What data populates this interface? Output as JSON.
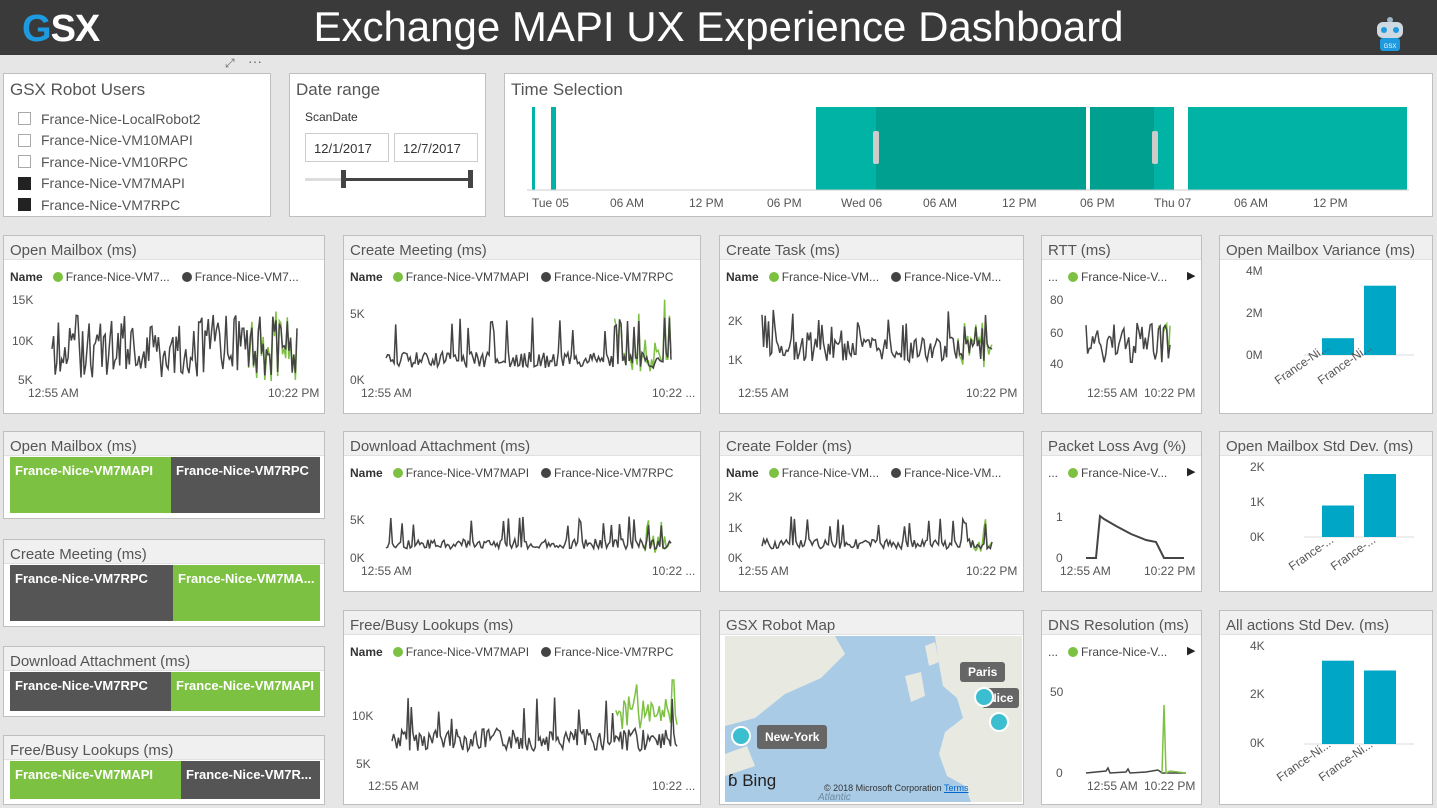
{
  "header": {
    "logo_g": "G",
    "logo_rest": "SX",
    "title": "Exchange MAPI UX Experience Dashboard",
    "robot_badge": "GSX"
  },
  "colors": {
    "green": "#7dc142",
    "dark": "#444444",
    "teal": "#00b3a4",
    "bar": "#00a6c6"
  },
  "robot_users": {
    "title": "GSX Robot Users",
    "items": [
      {
        "label": "France-Nice-LocalRobot2",
        "checked": false
      },
      {
        "label": "France-Nice-VM10MAPI",
        "checked": false
      },
      {
        "label": "France-Nice-VM10RPC",
        "checked": false
      },
      {
        "label": "France-Nice-VM7MAPI",
        "checked": true
      },
      {
        "label": "France-Nice-VM7RPC",
        "checked": true
      }
    ]
  },
  "date_range": {
    "title": "Date range",
    "field": "ScanDate",
    "start": "12/1/2017",
    "end": "12/7/2017"
  },
  "time_selection": {
    "title": "Time Selection",
    "ticks": [
      "Tue 05",
      "06 AM",
      "12 PM",
      "06 PM",
      "Wed 06",
      "06 AM",
      "12 PM",
      "06 PM",
      "Thu 07",
      "06 AM",
      "12 PM"
    ]
  },
  "open_mailbox": {
    "title": "Open Mailbox (ms)",
    "name_label": "Name",
    "legend": [
      "France-Nice-VM7...",
      "France-Nice-VM7..."
    ],
    "y_ticks": [
      "15K",
      "10K",
      "5K"
    ],
    "x_ticks": [
      "12:55 AM",
      "10:22 PM"
    ]
  },
  "create_meeting": {
    "title": "Create Meeting (ms)",
    "name_label": "Name",
    "legend": [
      "France-Nice-VM7MAPI",
      "France-Nice-VM7RPC"
    ],
    "y_ticks": [
      "5K",
      "0K"
    ],
    "x_ticks": [
      "12:55 AM",
      "10:22 ..."
    ]
  },
  "create_task": {
    "title": "Create Task (ms)",
    "name_label": "Name",
    "legend": [
      "France-Nice-VM...",
      "France-Nice-VM..."
    ],
    "y_ticks": [
      "2K",
      "1K"
    ],
    "x_ticks": [
      "12:55 AM",
      "10:22 PM"
    ]
  },
  "rtt": {
    "title": "RTT (ms)",
    "more": "...",
    "legend": [
      "France-Nice-V..."
    ],
    "y_ticks": [
      "80",
      "60",
      "40"
    ],
    "x_ticks": [
      "12:55 AM",
      "10:22 PM"
    ]
  },
  "open_mailbox_variance": {
    "title": "Open Mailbox Variance (ms)",
    "y_ticks": [
      "4M",
      "2M",
      "0M"
    ],
    "categories": [
      "France-Ni...",
      "France-Ni..."
    ]
  },
  "open_mailbox_cards": {
    "title": "Open Mailbox (ms)",
    "cards": [
      "France-Nice-VM7MAPI",
      "France-Nice-VM7RPC"
    ]
  },
  "download_attachment": {
    "title": "Download Attachment (ms)",
    "name_label": "Name",
    "legend": [
      "France-Nice-VM7MAPI",
      "France-Nice-VM7RPC"
    ],
    "y_ticks": [
      "5K",
      "0K"
    ],
    "x_ticks": [
      "12:55 AM",
      "10:22 ..."
    ]
  },
  "create_folder": {
    "title": "Create Folder (ms)",
    "name_label": "Name",
    "legend": [
      "France-Nice-VM...",
      "France-Nice-VM..."
    ],
    "y_ticks": [
      "2K",
      "1K",
      "0K"
    ],
    "x_ticks": [
      "12:55 AM",
      "10:22 PM"
    ]
  },
  "packet_loss": {
    "title": "Packet Loss Avg (%)",
    "more": "...",
    "legend": [
      "France-Nice-V..."
    ],
    "y_ticks": [
      "1",
      "0"
    ],
    "x_ticks": [
      "12:55 AM",
      "10:22 PM"
    ]
  },
  "open_mailbox_std": {
    "title": "Open Mailbox Std Dev. (ms)",
    "y_ticks": [
      "2K",
      "1K",
      "0K"
    ],
    "categories": [
      "France-...",
      "France-..."
    ]
  },
  "create_meeting_cards": {
    "title": "Create Meeting (ms)",
    "cards": [
      "France-Nice-VM7RPC",
      "France-Nice-VM7MA..."
    ]
  },
  "download_attachment_cards": {
    "title": "Download Attachment (ms)",
    "cards": [
      "France-Nice-VM7RPC",
      "France-Nice-VM7MAPI"
    ]
  },
  "freebusy_cards": {
    "title": "Free/Busy Lookups (ms)",
    "cards": [
      "France-Nice-VM7MAPI",
      "France-Nice-VM7R..."
    ]
  },
  "freebusy": {
    "title": "Free/Busy Lookups (ms)",
    "name_label": "Name",
    "legend": [
      "France-Nice-VM7MAPI",
      "France-Nice-VM7RPC"
    ],
    "y_ticks": [
      "10K",
      "5K"
    ],
    "x_ticks": [
      "12:55 AM",
      "10:22 ..."
    ]
  },
  "robot_map": {
    "title": "GSX Robot Map",
    "labels": [
      "Paris",
      "Nice",
      "New-York"
    ],
    "bing": "Bing",
    "copyright": "© 2018 Microsoft Corporation",
    "terms": "Terms",
    "sea": "Atlantic"
  },
  "dns": {
    "title": "DNS Resolution (ms)",
    "more": "...",
    "legend": [
      "France-Nice-V..."
    ],
    "y_ticks": [
      "50",
      "0"
    ],
    "x_ticks": [
      "12:55 AM",
      "10:22 PM"
    ]
  },
  "all_actions_std": {
    "title": "All actions Std Dev. (ms)",
    "y_ticks": [
      "4K",
      "2K",
      "0K"
    ],
    "categories": [
      "France-Ni...",
      "France-Ni..."
    ]
  },
  "chart_data": [
    {
      "type": "bar",
      "title": "Open Mailbox Variance (ms)",
      "categories": [
        "France-Ni...",
        "France-Ni..."
      ],
      "values": [
        0.8,
        3.3
      ],
      "unit": "M",
      "ylim": [
        0,
        4
      ]
    },
    {
      "type": "bar",
      "title": "Open Mailbox Std Dev. (ms)",
      "categories": [
        "France-...",
        "France-..."
      ],
      "values": [
        0.9,
        1.8
      ],
      "unit": "K",
      "ylim": [
        0,
        2
      ]
    },
    {
      "type": "bar",
      "title": "All actions Std Dev. (ms)",
      "categories": [
        "France-Ni...",
        "France-Ni..."
      ],
      "values": [
        3.4,
        3.0
      ],
      "unit": "K",
      "ylim": [
        0,
        4
      ]
    }
  ]
}
